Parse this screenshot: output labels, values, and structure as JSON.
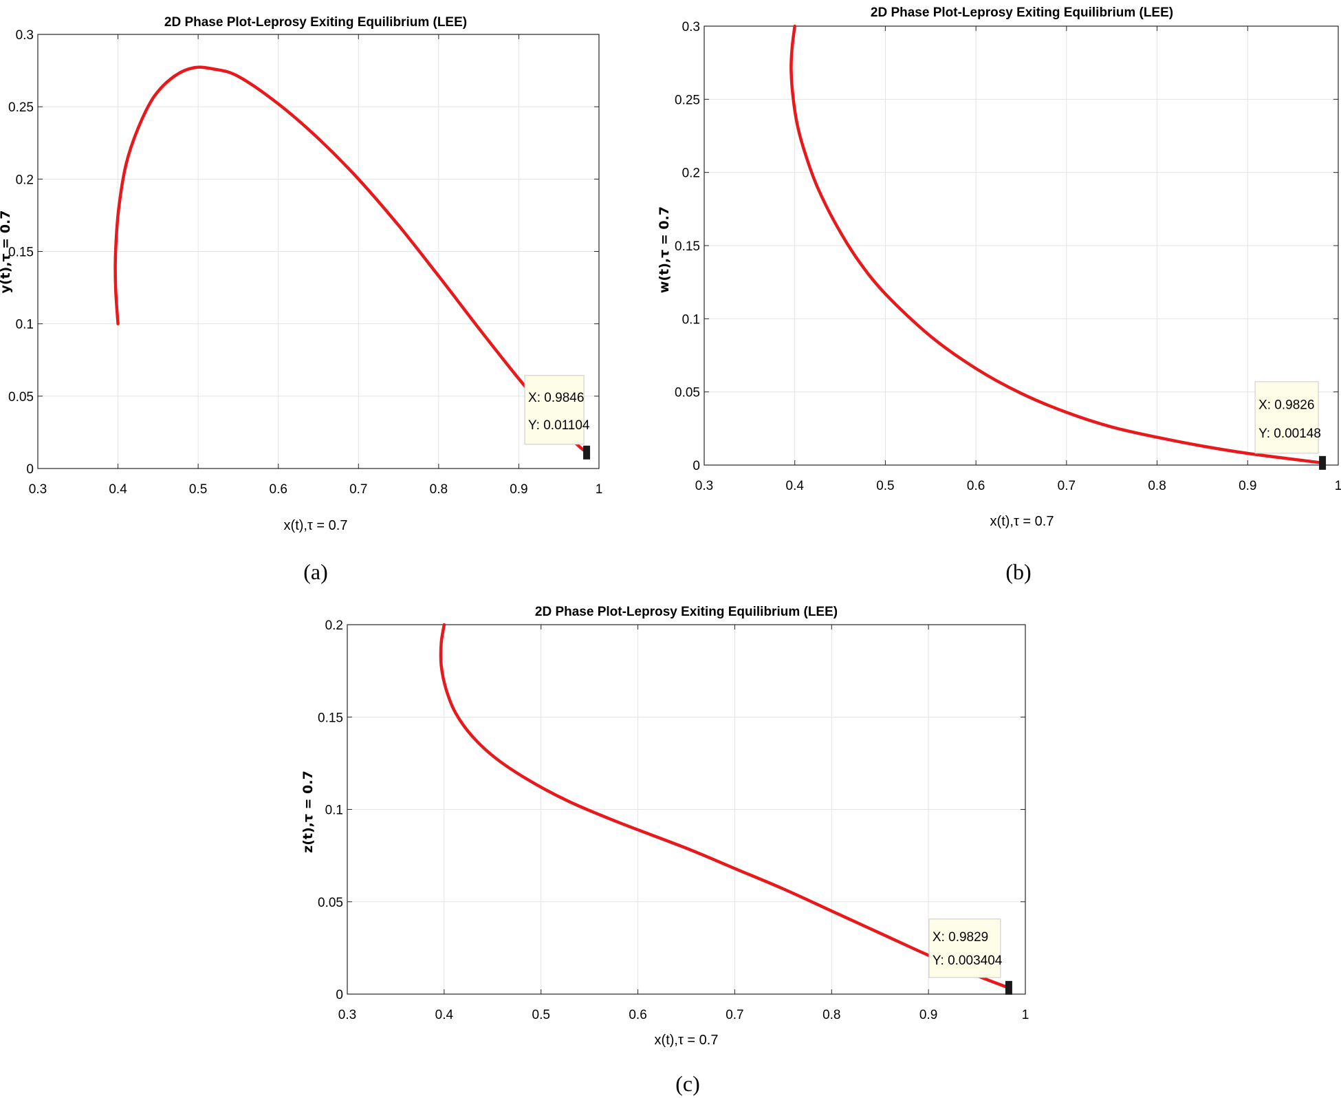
{
  "chart_data": [
    {
      "type": "line",
      "panel_label": "(a)",
      "title": "2D Phase Plot-Leprosy Exiting Equilibrium (LEE)",
      "xlabel": "x(t),τ = 0.7",
      "ylabel": "y(t),τ = 0.7",
      "xlim": [
        0.3,
        1
      ],
      "ylim": [
        0,
        0.3
      ],
      "xticks": [
        "0.3",
        "0.4",
        "0.5",
        "0.6",
        "0.7",
        "0.8",
        "0.9",
        "1"
      ],
      "yticks": [
        "0",
        "0.05",
        "0.1",
        "0.15",
        "0.2",
        "0.25",
        "0.3"
      ],
      "xtick_values": [
        0.3,
        0.4,
        0.5,
        0.6,
        0.7,
        0.8,
        0.9,
        1
      ],
      "ytick_values": [
        0,
        0.05,
        0.1,
        0.15,
        0.2,
        0.25,
        0.3
      ],
      "grid": true,
      "series": [
        {
          "name": "trajectory",
          "color": "#e8191c",
          "x": [
            0.4,
            0.397,
            0.397,
            0.401,
            0.41,
            0.425,
            0.445,
            0.47,
            0.495,
            0.52,
            0.55,
            0.6,
            0.65,
            0.7,
            0.75,
            0.8,
            0.85,
            0.9,
            0.94,
            0.97,
            0.9846
          ],
          "y": [
            0.1,
            0.125,
            0.15,
            0.18,
            0.21,
            0.235,
            0.257,
            0.271,
            0.277,
            0.276,
            0.271,
            0.252,
            0.228,
            0.2,
            0.168,
            0.133,
            0.097,
            0.062,
            0.036,
            0.018,
            0.01104
          ]
        }
      ],
      "datatip": {
        "x_label": "X: 0.9846",
        "y_label": "Y: 0.01104",
        "x": 0.9846,
        "y": 0.01104
      }
    },
    {
      "type": "line",
      "panel_label": "(b)",
      "title": "2D Phase Plot-Leprosy Exiting Equilibrium (LEE)",
      "xlabel": "x(t),τ = 0.7",
      "ylabel": "w(t),τ = 0.7",
      "xlim": [
        0.3,
        1
      ],
      "ylim": [
        0,
        0.3
      ],
      "xticks": [
        "0.3",
        "0.4",
        "0.5",
        "0.6",
        "0.7",
        "0.8",
        "0.9",
        "1"
      ],
      "yticks": [
        "0",
        "0.05",
        "0.1",
        "0.15",
        "0.2",
        "0.25",
        "0.3"
      ],
      "xtick_values": [
        0.3,
        0.4,
        0.5,
        0.6,
        0.7,
        0.8,
        0.9,
        1
      ],
      "ytick_values": [
        0,
        0.05,
        0.1,
        0.15,
        0.2,
        0.25,
        0.3
      ],
      "grid": true,
      "series": [
        {
          "name": "trajectory",
          "color": "#e8191c",
          "x": [
            0.4,
            0.397,
            0.396,
            0.398,
            0.403,
            0.412,
            0.425,
            0.445,
            0.47,
            0.5,
            0.55,
            0.6,
            0.65,
            0.7,
            0.75,
            0.8,
            0.85,
            0.9,
            0.95,
            0.9826
          ],
          "y": [
            0.3,
            0.285,
            0.27,
            0.252,
            0.232,
            0.212,
            0.19,
            0.165,
            0.14,
            0.117,
            0.088,
            0.066,
            0.049,
            0.036,
            0.026,
            0.019,
            0.013,
            0.008,
            0.004,
            0.00148
          ]
        }
      ],
      "datatip": {
        "x_label": "X: 0.9826",
        "y_label": "Y: 0.00148",
        "x": 0.9826,
        "y": 0.00148
      }
    },
    {
      "type": "line",
      "panel_label": "(c)",
      "title": "2D Phase Plot-Leprosy Exiting Equilibrium (LEE)",
      "xlabel": "x(t),τ = 0.7",
      "ylabel": "z(t),τ = 0.7",
      "xlim": [
        0.3,
        1
      ],
      "ylim": [
        0,
        0.2
      ],
      "xticks": [
        "0.3",
        "0.4",
        "0.5",
        "0.6",
        "0.7",
        "0.8",
        "0.9",
        "1"
      ],
      "yticks": [
        "0",
        "0.05",
        "0.1",
        "0.15",
        "0.2"
      ],
      "xtick_values": [
        0.3,
        0.4,
        0.5,
        0.6,
        0.7,
        0.8,
        0.9,
        1
      ],
      "ytick_values": [
        0,
        0.05,
        0.1,
        0.15,
        0.2
      ],
      "grid": true,
      "series": [
        {
          "name": "trajectory",
          "color": "#e8191c",
          "x": [
            0.4,
            0.397,
            0.397,
            0.402,
            0.412,
            0.43,
            0.455,
            0.49,
            0.53,
            0.58,
            0.65,
            0.7,
            0.75,
            0.8,
            0.85,
            0.9,
            0.95,
            0.9829
          ],
          "y": [
            0.2,
            0.19,
            0.178,
            0.165,
            0.152,
            0.139,
            0.127,
            0.115,
            0.104,
            0.093,
            0.079,
            0.068,
            0.057,
            0.045,
            0.033,
            0.021,
            0.01,
            0.003404
          ]
        }
      ],
      "datatip": {
        "x_label": "X: 0.9829",
        "y_label": "Y: 0.003404",
        "x": 0.9829,
        "y": 0.003404
      }
    }
  ]
}
